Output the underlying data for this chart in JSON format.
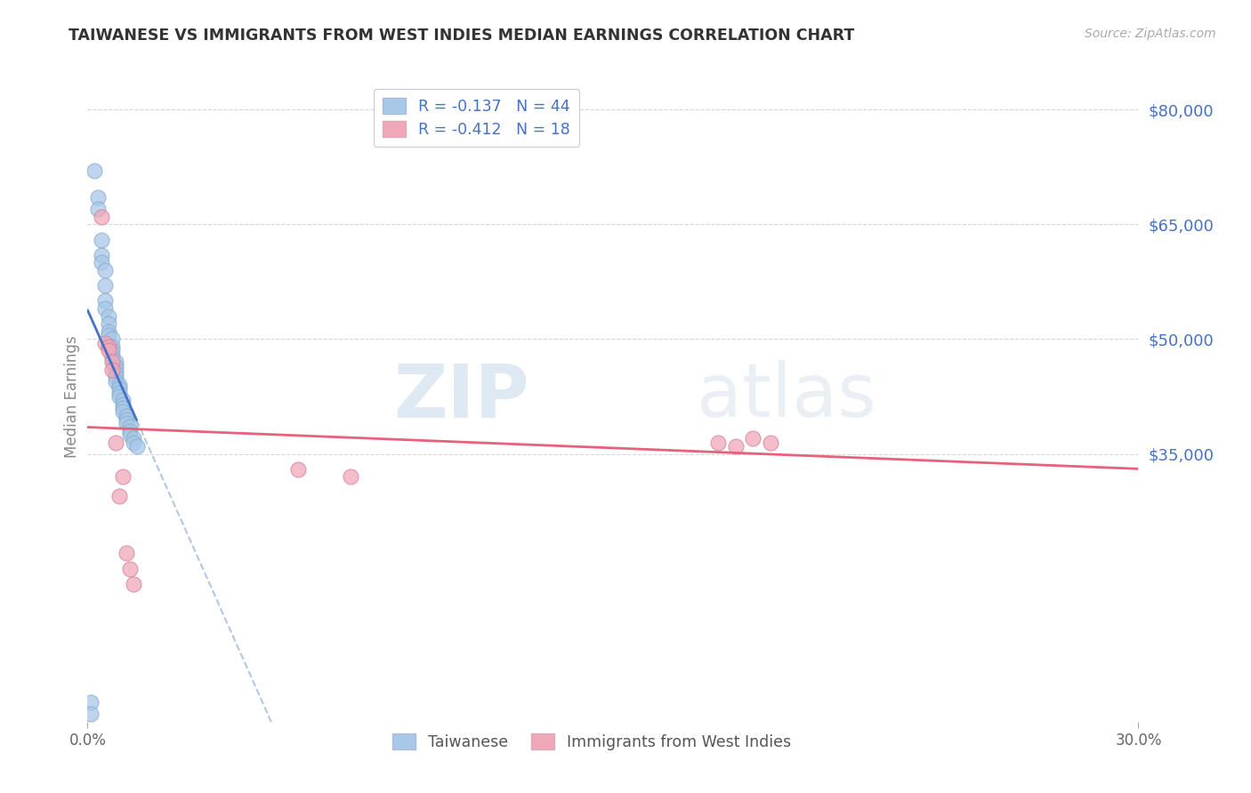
{
  "title": "TAIWANESE VS IMMIGRANTS FROM WEST INDIES MEDIAN EARNINGS CORRELATION CHART",
  "source": "Source: ZipAtlas.com",
  "ylabel": "Median Earnings",
  "x_min": 0.0,
  "x_max": 0.3,
  "y_min": 0,
  "y_max": 85000,
  "yticks": [
    0,
    35000,
    50000,
    65000,
    80000
  ],
  "ytick_labels": [
    "",
    "$35,000",
    "$50,000",
    "$65,000",
    "$80,000"
  ],
  "watermark_zip": "ZIP",
  "watermark_atlas": "atlas",
  "blue_color": "#a8c8e8",
  "pink_color": "#f0a8b8",
  "blue_line_color": "#4472c4",
  "pink_line_color": "#e8607a",
  "blue_dashed_color": "#b0c8e0",
  "background_color": "#ffffff",
  "grid_color": "#cccccc",
  "taiwanese_x": [
    0.002,
    0.003,
    0.003,
    0.004,
    0.004,
    0.004,
    0.005,
    0.005,
    0.005,
    0.005,
    0.006,
    0.006,
    0.006,
    0.006,
    0.007,
    0.007,
    0.007,
    0.007,
    0.007,
    0.008,
    0.008,
    0.008,
    0.008,
    0.008,
    0.008,
    0.009,
    0.009,
    0.009,
    0.009,
    0.01,
    0.01,
    0.01,
    0.01,
    0.011,
    0.011,
    0.011,
    0.012,
    0.012,
    0.012,
    0.013,
    0.013,
    0.014,
    0.001,
    0.001
  ],
  "taiwanese_y": [
    72000,
    68500,
    67000,
    63000,
    61000,
    60000,
    59000,
    57000,
    55000,
    54000,
    53000,
    52000,
    51000,
    50500,
    50000,
    49000,
    48500,
    48000,
    47500,
    47000,
    46500,
    46000,
    45500,
    45000,
    44500,
    44000,
    43500,
    43000,
    42500,
    42000,
    41500,
    41000,
    40500,
    40000,
    39500,
    39000,
    38500,
    38000,
    37500,
    37000,
    36500,
    36000,
    2500,
    1000
  ],
  "westindies_x": [
    0.004,
    0.005,
    0.006,
    0.006,
    0.007,
    0.007,
    0.008,
    0.009,
    0.01,
    0.011,
    0.012,
    0.013,
    0.06,
    0.075,
    0.18,
    0.185,
    0.19,
    0.195
  ],
  "westindies_y": [
    66000,
    49500,
    49000,
    48500,
    47000,
    46000,
    36500,
    29500,
    32000,
    22000,
    20000,
    18000,
    33000,
    32000,
    36500,
    36000,
    37000,
    36500
  ]
}
